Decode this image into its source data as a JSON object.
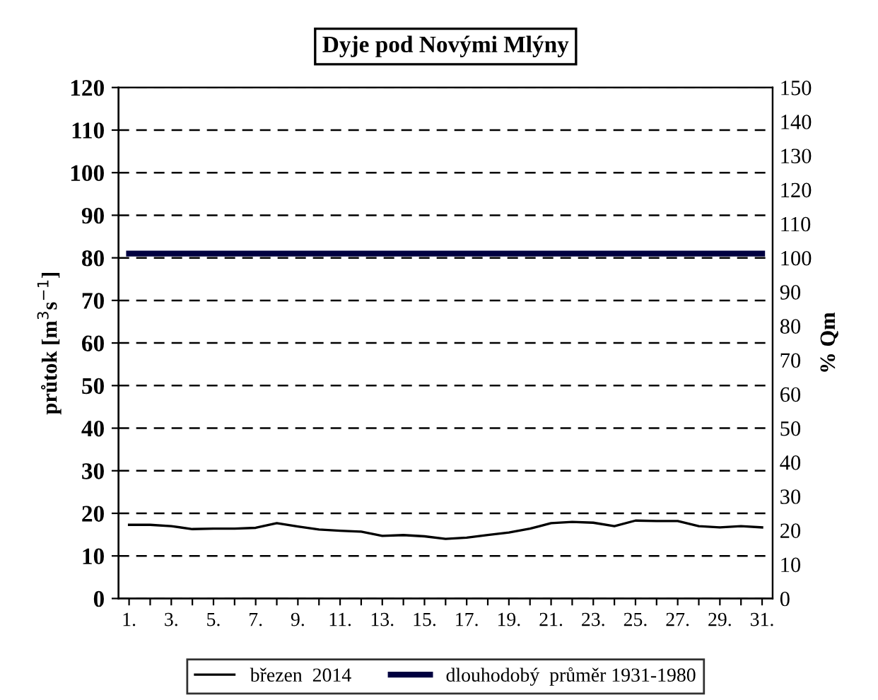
{
  "chart_data": {
    "type": "line",
    "title": "Dyje pod Novými Mlýny",
    "ylabel": "průtok [m$^{3}$s$^{−1}$]",
    "y2label": "% Qm",
    "categories": [
      "1.",
      null,
      "3.",
      null,
      "5.",
      null,
      "7.",
      null,
      "9.",
      null,
      "11.",
      null,
      "13.",
      null,
      "15.",
      null,
      "17.",
      null,
      "19.",
      null,
      "21.",
      null,
      "23.",
      null,
      "25.",
      null,
      "27.",
      null,
      "29.",
      null,
      "31."
    ],
    "series": [
      {
        "name": "březen  2014",
        "color": "#000000",
        "values": [
          17.3,
          17.3,
          17.0,
          16.3,
          16.4,
          16.4,
          16.6,
          17.7,
          16.9,
          16.2,
          15.9,
          15.7,
          14.7,
          14.9,
          14.6,
          14.0,
          14.3,
          14.9,
          15.5,
          16.4,
          17.7,
          18.0,
          17.8,
          17.0,
          18.3,
          18.2,
          18.2,
          17.0,
          16.7,
          17.0,
          16.7
        ]
      },
      {
        "name": "dlouhodobý  průměr 1931-1980",
        "color": "#000040",
        "values": [
          81,
          81,
          81,
          81,
          81,
          81,
          81,
          81,
          81,
          81,
          81,
          81,
          81,
          81,
          81,
          81,
          81,
          81,
          81,
          81,
          81,
          81,
          81,
          81,
          81,
          81,
          81,
          81,
          81,
          81,
          81
        ]
      }
    ],
    "ylim": [
      0,
      120
    ],
    "yticks": [
      0,
      10,
      20,
      30,
      40,
      50,
      60,
      70,
      80,
      90,
      100,
      110,
      120
    ],
    "y2lim": [
      0,
      150
    ],
    "y2ticks": [
      0,
      10,
      20,
      30,
      40,
      50,
      60,
      70,
      80,
      90,
      100,
      110,
      120,
      130,
      140,
      150
    ],
    "grid": "y",
    "legend": "bottom",
    "marker": "none",
    "line_style": "solid"
  }
}
